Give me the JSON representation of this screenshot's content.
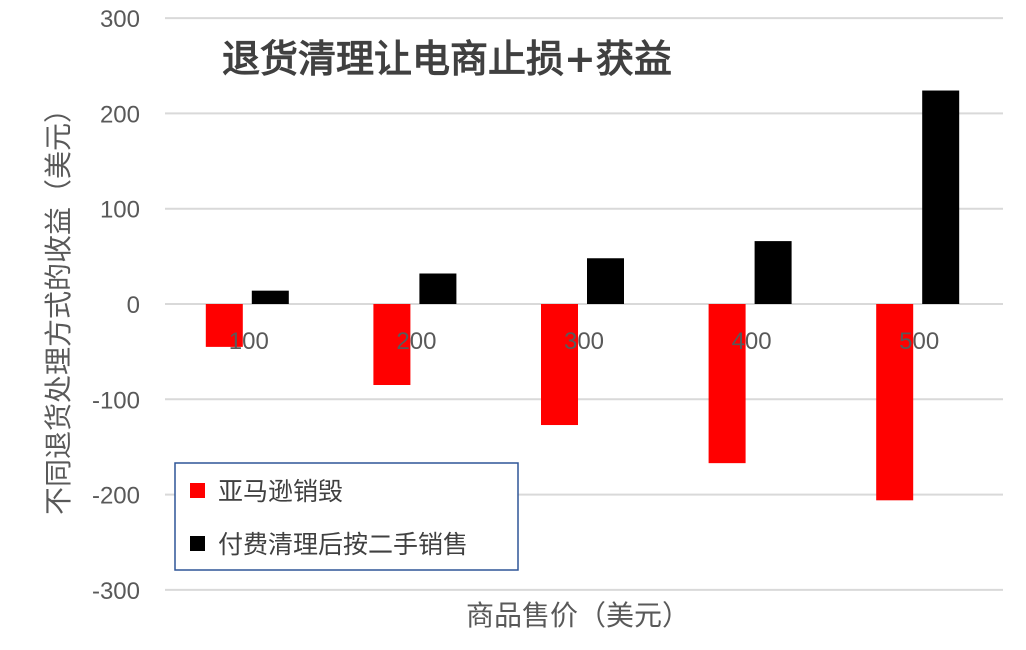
{
  "chart_data": {
    "type": "bar",
    "title": "退货清理让电商止损+获益",
    "xlabel": "商品售价（美元）",
    "ylabel": "不同退货处理方式的收益（美元）",
    "categories": [
      "100",
      "200",
      "300",
      "400",
      "500"
    ],
    "series": [
      {
        "name": "亚马逊销毁",
        "color": "#ff0000",
        "values": [
          -45,
          -85,
          -127,
          -167,
          -206
        ]
      },
      {
        "name": "付费清理后按二手销售",
        "color": "#000000",
        "values": [
          14,
          32,
          48,
          66,
          224
        ]
      }
    ],
    "ylim": [
      -300,
      300
    ],
    "yticks": [
      300,
      200,
      100,
      0,
      -100,
      -200,
      -300
    ],
    "grid": true,
    "legend_position": "lower-left inside"
  }
}
